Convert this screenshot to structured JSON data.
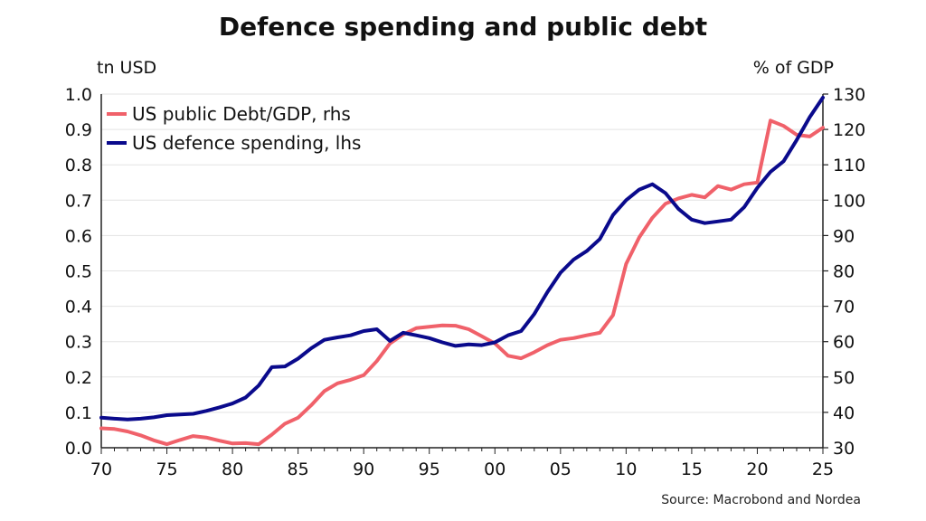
{
  "chart_data": {
    "type": "line",
    "title": "Defence spending and public debt",
    "left_axis_label": "tn USD",
    "right_axis_label": "% of GDP",
    "source": "Source: Macrobond and Nordea",
    "grid": true,
    "legend_position": "top-left",
    "x_range": [
      1970,
      2025
    ],
    "x_ticks": [
      1970,
      1975,
      1980,
      1985,
      1990,
      1995,
      2000,
      2005,
      2010,
      2015,
      2020,
      2025
    ],
    "x_tick_labels": [
      "70",
      "75",
      "80",
      "85",
      "90",
      "95",
      "00",
      "05",
      "10",
      "15",
      "20",
      "25"
    ],
    "y_left_range": [
      0.0,
      1.0
    ],
    "y_left_ticks": [
      "0.0",
      "0.1",
      "0.2",
      "0.3",
      "0.4",
      "0.5",
      "0.6",
      "0.7",
      "0.8",
      "0.9",
      "1.0"
    ],
    "y_right_range": [
      30,
      130
    ],
    "y_right_ticks": [
      "30",
      "40",
      "50",
      "60",
      "70",
      "80",
      "90",
      "100",
      "110",
      "120",
      "130"
    ],
    "series": [
      {
        "name": "US public Debt/GDP, rhs",
        "axis": "right",
        "color": "#f0616a",
        "points": [
          [
            1970,
            35.5
          ],
          [
            1971,
            35.3
          ],
          [
            1972,
            34.6
          ],
          [
            1973,
            33.5
          ],
          [
            1974,
            32.1
          ],
          [
            1975,
            31.0
          ],
          [
            1976,
            32.2
          ],
          [
            1977,
            33.3
          ],
          [
            1978,
            32.9
          ],
          [
            1979,
            32.0
          ],
          [
            1980,
            31.2
          ],
          [
            1981,
            31.3
          ],
          [
            1982,
            31.0
          ],
          [
            1983,
            33.7
          ],
          [
            1984,
            36.8
          ],
          [
            1985,
            38.5
          ],
          [
            1986,
            42.0
          ],
          [
            1987,
            46.0
          ],
          [
            1988,
            48.2
          ],
          [
            1989,
            49.2
          ],
          [
            1990,
            50.5
          ],
          [
            1991,
            54.5
          ],
          [
            1992,
            59.5
          ],
          [
            1993,
            62.0
          ],
          [
            1994,
            63.8
          ],
          [
            1995,
            64.2
          ],
          [
            1996,
            64.6
          ],
          [
            1997,
            64.5
          ],
          [
            1998,
            63.5
          ],
          [
            1999,
            61.5
          ],
          [
            2000,
            59.5
          ],
          [
            2001,
            56.0
          ],
          [
            2002,
            55.3
          ],
          [
            2003,
            57.0
          ],
          [
            2004,
            59.0
          ],
          [
            2005,
            60.5
          ],
          [
            2006,
            61.0
          ],
          [
            2007,
            61.8
          ],
          [
            2008,
            62.5
          ],
          [
            2009,
            67.5
          ],
          [
            2010,
            82.0
          ],
          [
            2011,
            89.5
          ],
          [
            2012,
            95.0
          ],
          [
            2013,
            99.0
          ],
          [
            2014,
            100.5
          ],
          [
            2015,
            101.5
          ],
          [
            2016,
            100.8
          ],
          [
            2017,
            104.0
          ],
          [
            2018,
            103.0
          ],
          [
            2019,
            104.5
          ],
          [
            2020,
            105.0
          ],
          [
            2021,
            122.5
          ],
          [
            2022,
            121.0
          ],
          [
            2023,
            118.5
          ],
          [
            2024,
            118.0
          ],
          [
            2025,
            120.5
          ]
        ]
      },
      {
        "name": "US defence spending, lhs",
        "axis": "left",
        "color": "#0a0a8c",
        "points": [
          [
            1970,
            0.085
          ],
          [
            1971,
            0.082
          ],
          [
            1972,
            0.08
          ],
          [
            1973,
            0.082
          ],
          [
            1974,
            0.086
          ],
          [
            1975,
            0.092
          ],
          [
            1976,
            0.094
          ],
          [
            1977,
            0.096
          ],
          [
            1978,
            0.104
          ],
          [
            1979,
            0.114
          ],
          [
            1980,
            0.125
          ],
          [
            1981,
            0.142
          ],
          [
            1982,
            0.176
          ],
          [
            1983,
            0.228
          ],
          [
            1984,
            0.23
          ],
          [
            1985,
            0.252
          ],
          [
            1986,
            0.281
          ],
          [
            1987,
            0.305
          ],
          [
            1988,
            0.312
          ],
          [
            1989,
            0.318
          ],
          [
            1990,
            0.33
          ],
          [
            1991,
            0.335
          ],
          [
            1992,
            0.302
          ],
          [
            1993,
            0.325
          ],
          [
            1994,
            0.318
          ],
          [
            1995,
            0.31
          ],
          [
            1996,
            0.298
          ],
          [
            1997,
            0.288
          ],
          [
            1998,
            0.292
          ],
          [
            1999,
            0.29
          ],
          [
            2000,
            0.298
          ],
          [
            2001,
            0.318
          ],
          [
            2002,
            0.33
          ],
          [
            2003,
            0.378
          ],
          [
            2004,
            0.44
          ],
          [
            2005,
            0.495
          ],
          [
            2006,
            0.532
          ],
          [
            2007,
            0.556
          ],
          [
            2008,
            0.59
          ],
          [
            2009,
            0.658
          ],
          [
            2010,
            0.7
          ],
          [
            2011,
            0.73
          ],
          [
            2012,
            0.745
          ],
          [
            2013,
            0.72
          ],
          [
            2014,
            0.675
          ],
          [
            2015,
            0.645
          ],
          [
            2016,
            0.635
          ],
          [
            2017,
            0.64
          ],
          [
            2018,
            0.645
          ],
          [
            2019,
            0.68
          ],
          [
            2020,
            0.735
          ],
          [
            2021,
            0.78
          ],
          [
            2022,
            0.81
          ],
          [
            2023,
            0.87
          ],
          [
            2024,
            0.935
          ],
          [
            2025,
            0.99
          ]
        ]
      }
    ]
  }
}
